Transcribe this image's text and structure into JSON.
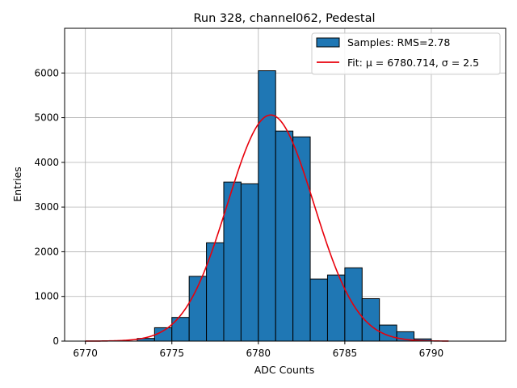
{
  "chart_data": {
    "type": "bar",
    "title": "Run 328, channel062, Pedestal",
    "xlabel": "ADC Counts",
    "ylabel": "Entries",
    "xlim": [
      6768.8,
      6794.3
    ],
    "ylim": [
      0,
      7000
    ],
    "xticks": [
      6770,
      6775,
      6780,
      6785,
      6790
    ],
    "yticks": [
      0,
      1000,
      2000,
      3000,
      4000,
      5000,
      6000
    ],
    "grid": true,
    "legend_placement": "top-right",
    "bars": {
      "name": "Samples: RMS=2.78",
      "bin_width": 1,
      "bin_starts": [
        6773,
        6774,
        6775,
        6776,
        6777,
        6778,
        6779,
        6780,
        6781,
        6782,
        6783,
        6784,
        6785,
        6786,
        6787,
        6788,
        6789
      ],
      "values": [
        60,
        300,
        530,
        1450,
        2200,
        3560,
        3520,
        6050,
        4700,
        4570,
        1390,
        1480,
        1640,
        950,
        360,
        210,
        50
      ],
      "color": "#1f77b4",
      "edge_color": "#000000"
    },
    "fit": {
      "name": "Fit: μ = 6780.714, σ = 2.5",
      "mu": 6780.714,
      "sigma": 2.5,
      "amplitude": 5060,
      "x_range": [
        6770,
        6791
      ],
      "color": "#e8000b"
    }
  }
}
